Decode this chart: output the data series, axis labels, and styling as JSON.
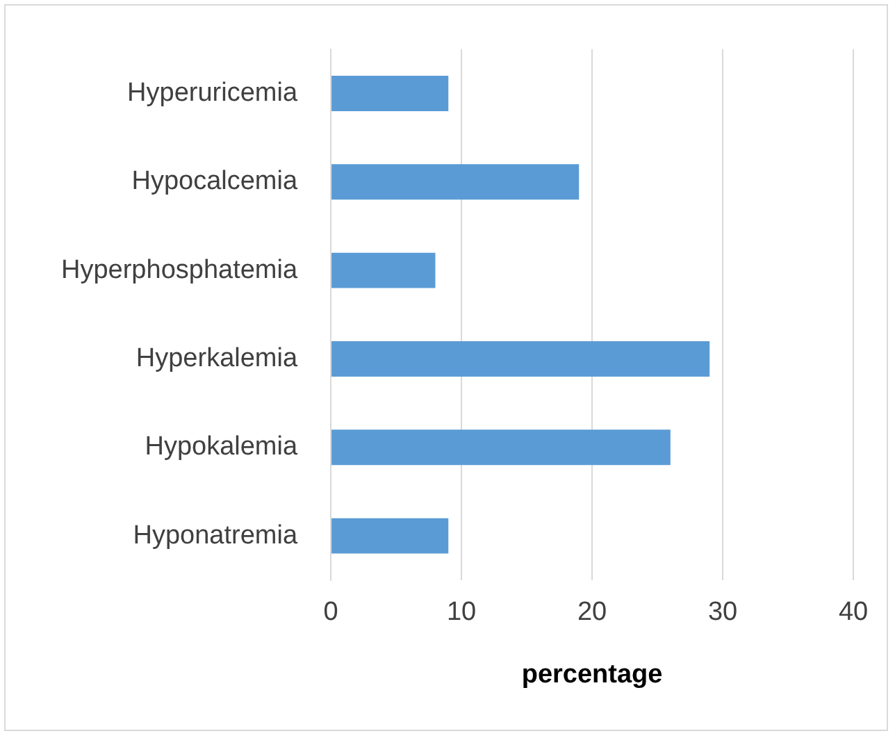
{
  "chart_data": {
    "type": "bar",
    "orientation": "horizontal",
    "xlabel": "percentage",
    "categories": [
      "Hyperuricemia",
      "Hypocalcemia",
      "Hyperphosphatemia",
      "Hyperkalemia",
      "Hypokalemia",
      "Hyponatremia"
    ],
    "values": [
      9,
      19,
      8,
      29,
      26,
      9
    ],
    "color": "#5b9bd5",
    "xlim": [
      0,
      40
    ],
    "xticks": [
      0,
      10,
      20,
      30,
      40
    ],
    "grid": "x",
    "legend": false
  }
}
